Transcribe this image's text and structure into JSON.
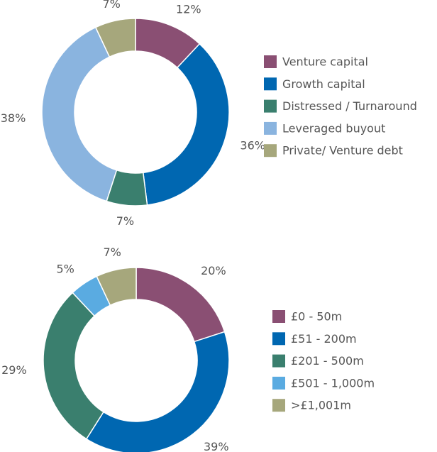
{
  "chart_data": [
    {
      "type": "pie",
      "categories": [
        "Venture capital",
        "Growth capital",
        "Distressed / Turnaround",
        "Leveraged buyout",
        "Private/ Venture debt"
      ],
      "values": [
        12,
        36,
        7,
        38,
        7
      ],
      "value_labels": [
        "12%",
        "36%",
        "7%",
        "38%",
        "7%"
      ],
      "colors": [
        "#8a4f73",
        "#0067b1",
        "#3a7f6e",
        "#8ab4df",
        "#a6a77c"
      ],
      "legend": "right"
    },
    {
      "type": "pie",
      "categories": [
        "£0 - 50m",
        "£51 - 200m",
        "£201 - 500m",
        "£501 - 1,000m",
        ">£1,001m"
      ],
      "values": [
        20,
        39,
        29,
        5,
        7
      ],
      "value_labels": [
        "20%",
        "39%",
        "29%",
        "5%",
        "7%"
      ],
      "colors": [
        "#8a4f73",
        "#0067b1",
        "#3a7f6e",
        "#5aabe1",
        "#a6a77c"
      ],
      "legend": "right"
    }
  ]
}
